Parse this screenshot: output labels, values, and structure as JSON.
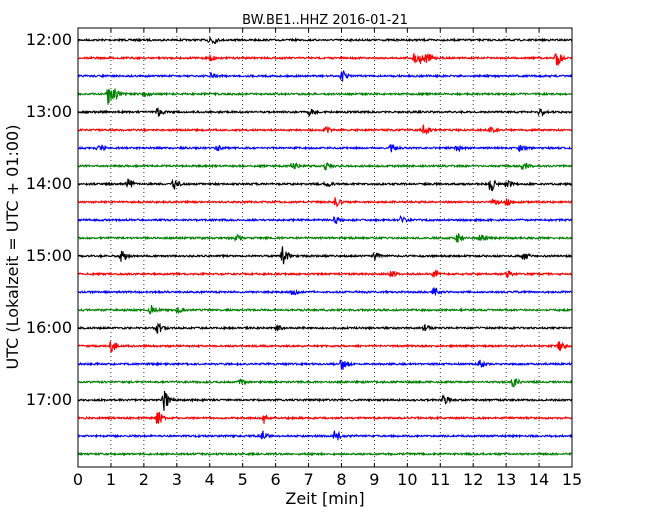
{
  "chart_data": {
    "type": "line",
    "title": "BW.BE1..HHZ 2016-01-21",
    "xlabel": "Zeit  [min]",
    "ylabel": "UTC (Lokalzeit = UTC + 01:00)",
    "xlim": [
      0,
      15
    ],
    "x_ticks": [
      "0",
      "1",
      "2",
      "3",
      "4",
      "5",
      "6",
      "7",
      "8",
      "9",
      "10",
      "11",
      "12",
      "13",
      "14",
      "15"
    ],
    "y_ticks": [
      "12:00",
      "13:00",
      "14:00",
      "15:00",
      "16:00",
      "17:00"
    ],
    "row_interval_min": 15,
    "grid": "vertical dotted",
    "series_colors": [
      "#000000",
      "#ff0000",
      "#0000ff",
      "#008000"
    ],
    "rows": [
      {
        "start": "12:00",
        "events": [
          [
            4.0,
            1.2
          ]
        ]
      },
      {
        "start": "12:15",
        "events": [
          [
            4.0,
            0.6
          ],
          [
            10.2,
            0.7
          ],
          [
            10.4,
            1.0
          ],
          [
            10.6,
            0.6
          ],
          [
            14.5,
            1.6
          ]
        ]
      },
      {
        "start": "12:30",
        "events": [
          [
            4.0,
            0.5
          ],
          [
            8.0,
            0.9
          ]
        ]
      },
      {
        "start": "12:45",
        "events": [
          [
            0.9,
            1.9
          ],
          [
            1.1,
            0.8
          ],
          [
            2.0,
            0.4
          ]
        ]
      },
      {
        "start": "13:00",
        "events": [
          [
            2.4,
            0.8
          ],
          [
            7.0,
            0.5
          ],
          [
            14.0,
            0.7
          ]
        ]
      },
      {
        "start": "13:15",
        "events": [
          [
            7.5,
            0.5
          ],
          [
            10.5,
            1.0
          ],
          [
            12.5,
            0.6
          ]
        ]
      },
      {
        "start": "13:30",
        "events": [
          [
            0.6,
            0.8
          ],
          [
            4.2,
            0.5
          ],
          [
            9.5,
            0.6
          ],
          [
            11.5,
            0.5
          ],
          [
            13.4,
            0.5
          ]
        ]
      },
      {
        "start": "13:45",
        "events": [
          [
            6.5,
            0.7
          ],
          [
            7.5,
            0.6
          ],
          [
            13.5,
            0.6
          ]
        ]
      },
      {
        "start": "14:00",
        "events": [
          [
            1.5,
            1.0
          ],
          [
            2.9,
            1.0
          ],
          [
            7.5,
            0.5
          ],
          [
            12.5,
            1.2
          ],
          [
            13.0,
            0.5
          ]
        ]
      },
      {
        "start": "14:15",
        "events": [
          [
            7.8,
            0.8
          ],
          [
            12.6,
            0.5
          ],
          [
            13.0,
            0.6
          ]
        ]
      },
      {
        "start": "14:30",
        "events": [
          [
            7.8,
            0.6
          ],
          [
            9.8,
            0.5
          ]
        ]
      },
      {
        "start": "14:45",
        "events": [
          [
            4.8,
            0.5
          ],
          [
            11.5,
            0.8
          ],
          [
            12.2,
            0.6
          ]
        ]
      },
      {
        "start": "15:00",
        "events": [
          [
            1.3,
            0.9
          ],
          [
            6.2,
            1.8
          ],
          [
            9.0,
            0.7
          ],
          [
            13.5,
            0.7
          ]
        ]
      },
      {
        "start": "15:15",
        "events": [
          [
            9.5,
            0.5
          ],
          [
            10.8,
            0.7
          ],
          [
            13.0,
            0.6
          ]
        ]
      },
      {
        "start": "15:30",
        "events": [
          [
            6.5,
            0.5
          ],
          [
            10.8,
            0.7
          ]
        ]
      },
      {
        "start": "15:45",
        "events": [
          [
            2.2,
            0.9
          ],
          [
            3.0,
            0.4
          ]
        ]
      },
      {
        "start": "16:00",
        "events": [
          [
            2.4,
            0.9
          ],
          [
            6.0,
            0.5
          ],
          [
            10.5,
            0.5
          ]
        ]
      },
      {
        "start": "16:15",
        "events": [
          [
            1.0,
            1.0
          ],
          [
            14.6,
            0.8
          ]
        ]
      },
      {
        "start": "16:30",
        "events": [
          [
            8.0,
            1.3
          ],
          [
            12.2,
            0.7
          ]
        ]
      },
      {
        "start": "16:45",
        "events": [
          [
            4.9,
            0.4
          ],
          [
            13.2,
            0.8
          ]
        ]
      },
      {
        "start": "17:00",
        "events": [
          [
            2.6,
            2.0
          ],
          [
            11.1,
            0.9
          ]
        ]
      },
      {
        "start": "17:15",
        "events": [
          [
            2.4,
            1.3
          ],
          [
            5.6,
            1.1
          ]
        ]
      },
      {
        "start": "17:30",
        "events": [
          [
            5.6,
            0.9
          ],
          [
            7.8,
            0.9
          ]
        ]
      },
      {
        "start": "17:45",
        "events": []
      }
    ]
  }
}
